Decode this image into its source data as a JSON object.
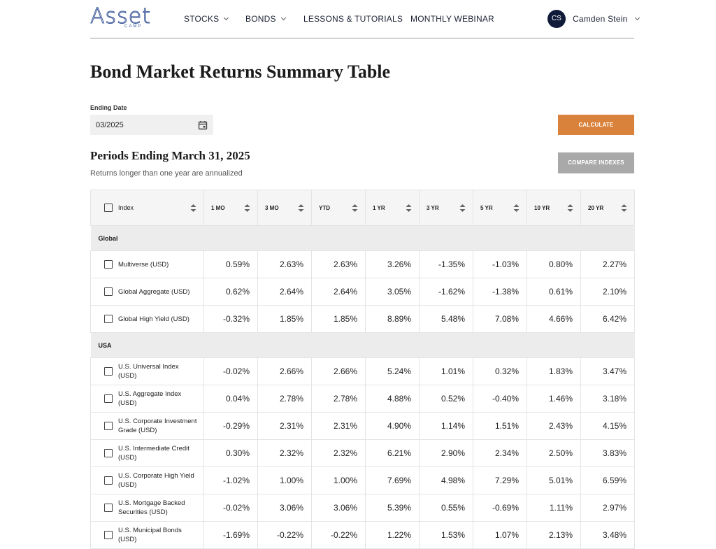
{
  "nav": {
    "logo": "Asset",
    "logo_sub": "CAMP",
    "items": [
      "STOCKS",
      "BONDS",
      "LESSONS & TUTORIALS",
      "MONTHLY WEBINAR"
    ],
    "user_initials": "CS",
    "user_name": "Camden Stein"
  },
  "page": {
    "title": "Bond Market Returns Summary Table",
    "date_label": "Ending Date",
    "date_value": "03/2025",
    "calculate": "CALCULATE",
    "compare": "COMPARE INDEXES",
    "period_title": "Periods Ending March 31, 2025",
    "period_note": "Returns longer than one year are annualized"
  },
  "table": {
    "columns": [
      "Index",
      "1 MO",
      "3 MO",
      "YTD",
      "1 YR",
      "3 YR",
      "5 YR",
      "10 YR",
      "20 YR"
    ],
    "groups": [
      {
        "name": "Global",
        "rows": [
          {
            "index": "Multiverse (USD)",
            "values": [
              "0.59%",
              "2.63%",
              "2.63%",
              "3.26%",
              "-1.35%",
              "-1.03%",
              "0.80%",
              "2.27%"
            ]
          },
          {
            "index": "Global Aggregate (USD)",
            "values": [
              "0.62%",
              "2.64%",
              "2.64%",
              "3.05%",
              "-1.62%",
              "-1.38%",
              "0.61%",
              "2.10%"
            ]
          },
          {
            "index": "Global High Yield (USD)",
            "values": [
              "-0.32%",
              "1.85%",
              "1.85%",
              "8.89%",
              "5.48%",
              "7.08%",
              "4.66%",
              "6.42%"
            ]
          }
        ]
      },
      {
        "name": "USA",
        "rows": [
          {
            "index": "U.S. Universal Index (USD)",
            "values": [
              "-0.02%",
              "2.66%",
              "2.66%",
              "5.24%",
              "1.01%",
              "0.32%",
              "1.83%",
              "3.47%"
            ]
          },
          {
            "index": "U.S. Aggregate Index (USD)",
            "values": [
              "0.04%",
              "2.78%",
              "2.78%",
              "4.88%",
              "0.52%",
              "-0.40%",
              "1.46%",
              "3.18%"
            ]
          },
          {
            "index": "U.S. Corporate Investment Grade (USD)",
            "values": [
              "-0.29%",
              "2.31%",
              "2.31%",
              "4.90%",
              "1.14%",
              "1.51%",
              "2.43%",
              "4.15%"
            ]
          },
          {
            "index": "U.S. Intermediate Credit (USD)",
            "values": [
              "0.30%",
              "2.32%",
              "2.32%",
              "6.21%",
              "2.90%",
              "2.34%",
              "2.50%",
              "3.83%"
            ]
          },
          {
            "index": "U.S. Corporate High Yield (USD)",
            "values": [
              "-1.02%",
              "1.00%",
              "1.00%",
              "7.69%",
              "4.98%",
              "7.29%",
              "5.01%",
              "6.59%"
            ]
          },
          {
            "index": "U.S. Mortgage Backed Securities (USD)",
            "values": [
              "-0.02%",
              "3.06%",
              "3.06%",
              "5.39%",
              "0.55%",
              "-0.69%",
              "1.11%",
              "2.97%"
            ]
          },
          {
            "index": "U.S. Municipal Bonds (USD)",
            "values": [
              "-1.69%",
              "-0.22%",
              "-0.22%",
              "1.22%",
              "1.53%",
              "1.07%",
              "2.13%",
              "3.48%"
            ]
          }
        ]
      }
    ]
  }
}
